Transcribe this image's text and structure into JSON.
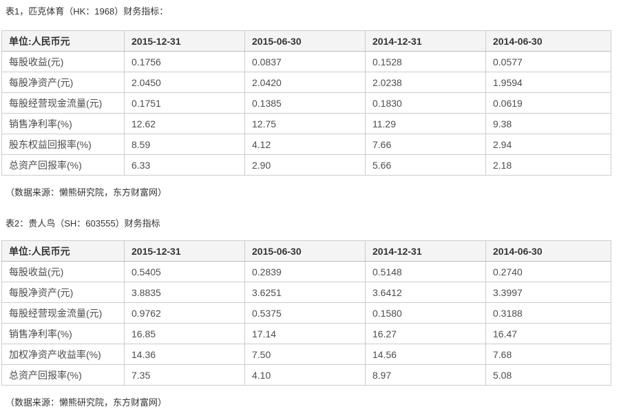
{
  "colors": {
    "table_border": "#cccccc",
    "header_background": "#f4f4f4",
    "text": "#333333"
  },
  "tables": [
    {
      "caption": "表1，匹克体育（HK：1968）财务指标：",
      "columns": [
        "单位:人民币元",
        "2015-12-31",
        "2015-06-30",
        "2014-12-31",
        "2014-06-30"
      ],
      "rows": [
        {
          "label": "每股收益(元)",
          "values": [
            "0.1756",
            "0.0837",
            "0.1528",
            "0.0577"
          ]
        },
        {
          "label": "每股净资产(元)",
          "values": [
            "2.0450",
            "2.0420",
            "2.0238",
            "1.9594"
          ]
        },
        {
          "label": "每股经营现金流量(元)",
          "values": [
            "0.1751",
            "0.1385",
            "0.1830",
            "0.0619"
          ]
        },
        {
          "label": "销售净利率(%)",
          "values": [
            "12.62",
            "12.75",
            "11.29",
            "9.38"
          ]
        },
        {
          "label": "股东权益回报率(%)",
          "values": [
            "8.59",
            "4.12",
            "7.66",
            "2.94"
          ]
        },
        {
          "label": "总资产回报率(%)",
          "values": [
            "6.33",
            "2.90",
            "5.66",
            "2.18"
          ]
        }
      ],
      "source": "（数据来源：懒熊研究院，东方财富网）"
    },
    {
      "caption": "表2：贵人鸟（SH：603555）财务指标",
      "columns": [
        "单位:人民币元",
        "2015-12-31",
        "2015-06-30",
        "2014-12-31",
        "2014-06-30"
      ],
      "rows": [
        {
          "label": "每股收益(元)",
          "values": [
            "0.5405",
            "0.2839",
            "0.5148",
            "0.2740"
          ]
        },
        {
          "label": "每股净资产(元)",
          "values": [
            "3.8835",
            "3.6251",
            "3.6412",
            "3.3997"
          ]
        },
        {
          "label": "每股经营现金流量(元)",
          "values": [
            "0.9762",
            "0.5375",
            "0.1580",
            "0.3188"
          ]
        },
        {
          "label": "销售净利率(%)",
          "values": [
            "16.85",
            "17.14",
            "16.27",
            "16.47"
          ]
        },
        {
          "label": "加权净资产收益率(%)",
          "values": [
            "14.36",
            "7.50",
            "14.56",
            "7.68"
          ]
        },
        {
          "label": "总资产回报率(%)",
          "values": [
            "7.35",
            "4.10",
            "8.97",
            "5.08"
          ]
        }
      ],
      "source": "（数据来源：懒熊研究院，东方财富网）"
    }
  ]
}
